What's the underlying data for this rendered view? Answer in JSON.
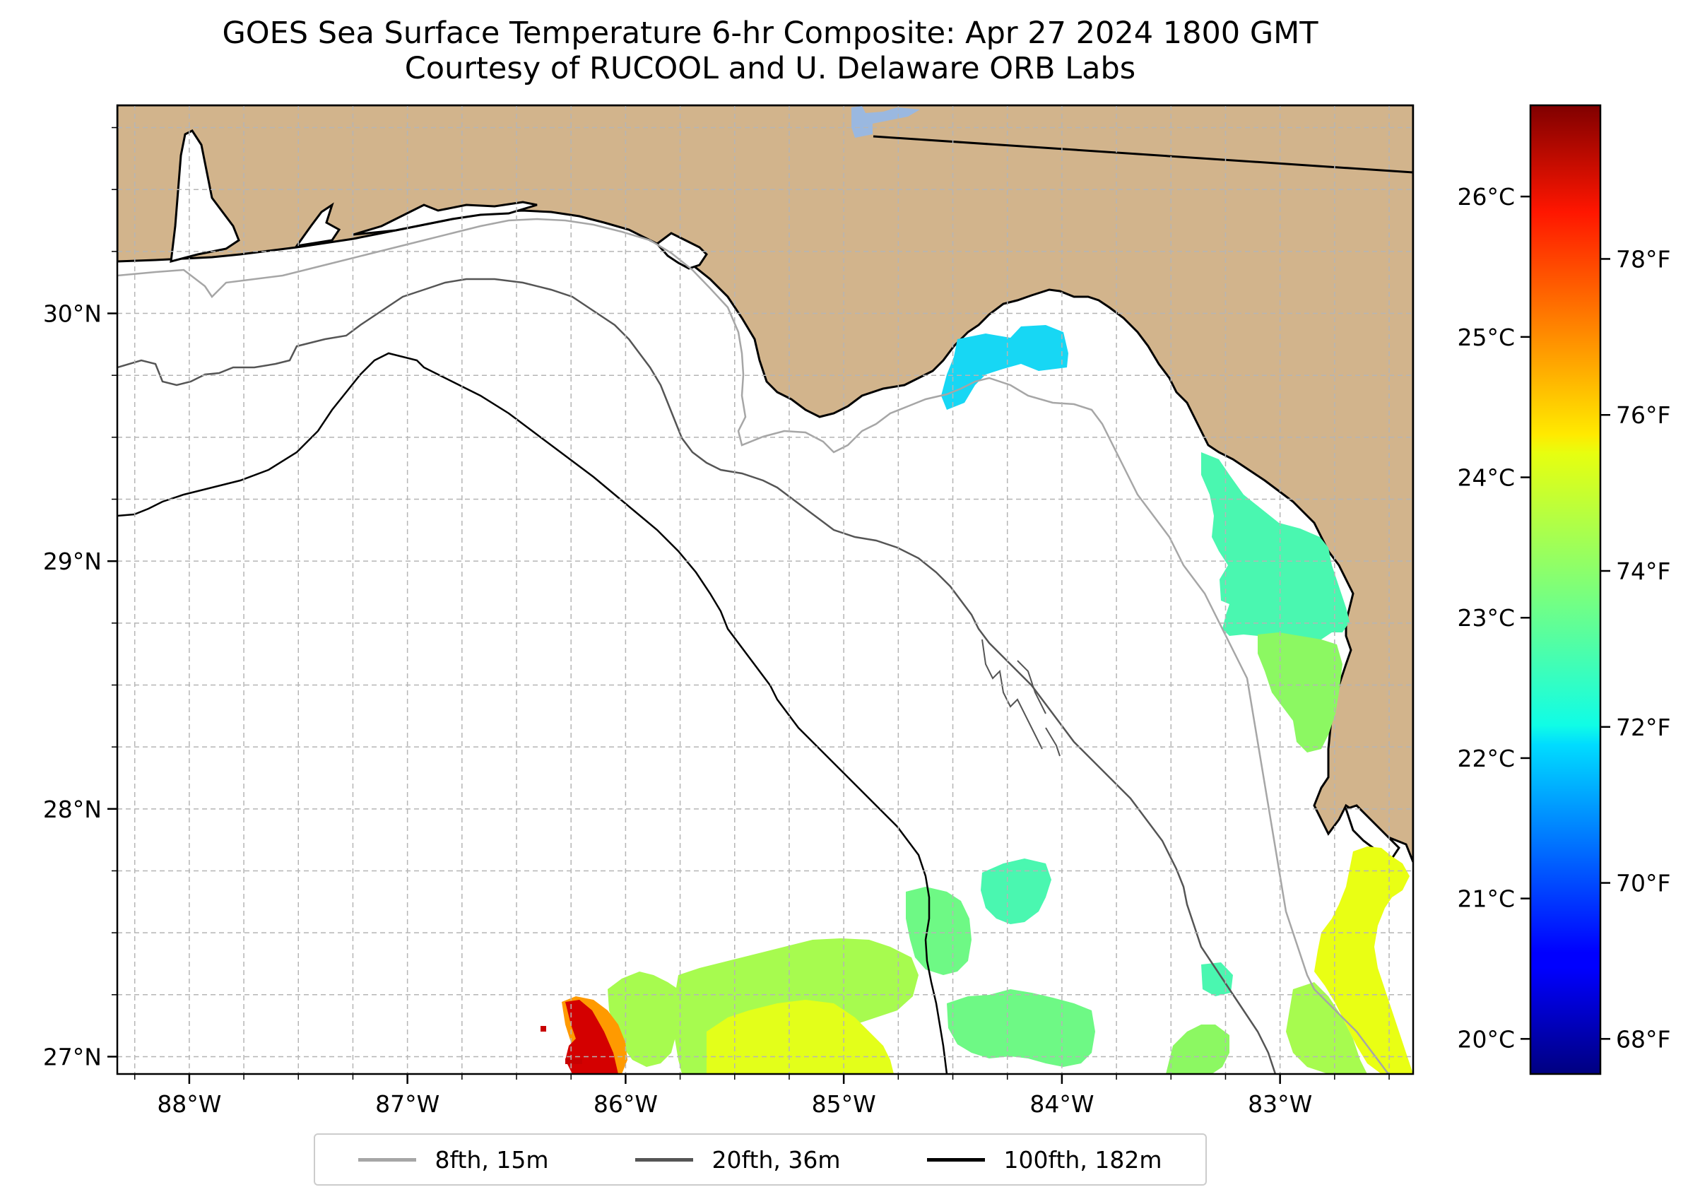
{
  "title": {
    "line1": "GOES Sea Surface Temperature 6-hr Composite: Apr 27 2024 1800 GMT",
    "line2": "Courtesy of RUCOOL and U. Delaware ORB Labs"
  },
  "map": {
    "lon_range": [
      -88.33,
      -82.39
    ],
    "lat_range": [
      26.93,
      30.84
    ],
    "land_color": "#d2b48c",
    "water_color": "#ffffff",
    "grid": true,
    "grid_style": "dashed"
  },
  "lon_ticks": [
    {
      "value": -88,
      "label": "88°W"
    },
    {
      "value": -87,
      "label": "87°W"
    },
    {
      "value": -86,
      "label": "86°W"
    },
    {
      "value": -85,
      "label": "85°W"
    },
    {
      "value": -84,
      "label": "84°W"
    },
    {
      "value": -83,
      "label": "83°W"
    }
  ],
  "lat_ticks": [
    {
      "value": 27,
      "label": "27°N"
    },
    {
      "value": 28,
      "label": "28°N"
    },
    {
      "value": 29,
      "label": "29°N"
    },
    {
      "value": 30,
      "label": "30°N"
    }
  ],
  "colorbar": {
    "colormap": "jet",
    "celsius_ticks": [
      "20°C",
      "21°C",
      "22°C",
      "23°C",
      "24°C",
      "25°C",
      "26°C"
    ],
    "fahrenheit_ticks": [
      "68°F",
      "70°F",
      "72°F",
      "74°F",
      "76°F",
      "78°F"
    ],
    "c_min": 19.75,
    "c_max": 26.65
  },
  "legend": {
    "placement": "bottom-center",
    "entries": [
      {
        "label": "8fth, 15m",
        "color": "#a6a6a6"
      },
      {
        "label": "20fth, 36m",
        "color": "#555555"
      },
      {
        "label": "100fth, 182m",
        "color": "#000000"
      }
    ]
  },
  "sst_patches": [
    {
      "region": "apalachee-bay",
      "temp_c": 21.9
    },
    {
      "region": "big-bend-coast",
      "temp_c": 23.0
    },
    {
      "region": "tampa-bay-coast",
      "temp_c": 24.3
    },
    {
      "region": "south-central",
      "temp_c": 23.8
    },
    {
      "region": "southwest-warm-spot",
      "temp_c": 26.6
    }
  ]
}
